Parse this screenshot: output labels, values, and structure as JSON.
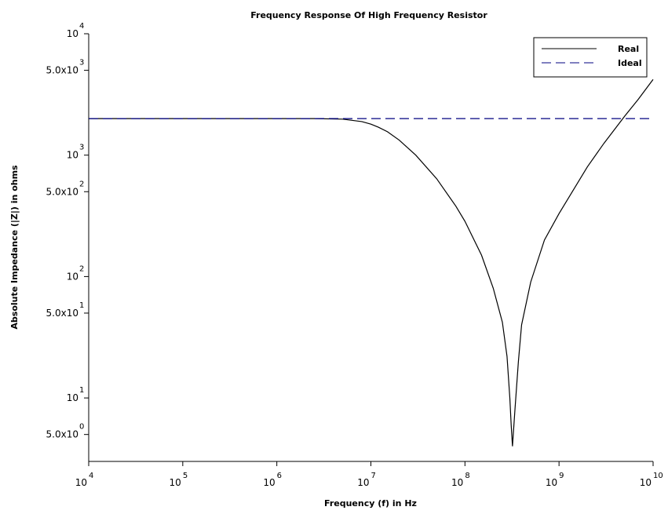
{
  "chart_data": {
    "type": "line",
    "title": "Frequency Response Of High Frequency Resistor",
    "xlabel": "Frequency  (f) in Hz",
    "ylabel": "Absolute Impedance (|Z|) in ohms",
    "x_scale": "log",
    "y_scale": "log",
    "xlim": [
      10000,
      10000000000
    ],
    "ylim": [
      3,
      10000
    ],
    "grid": false,
    "legend_position": "top-right",
    "x_ticks": [
      {
        "value": 10000,
        "base": "10",
        "exp": "4"
      },
      {
        "value": 100000,
        "base": "10",
        "exp": "5"
      },
      {
        "value": 1000000,
        "base": "10",
        "exp": "6"
      },
      {
        "value": 10000000,
        "base": "10",
        "exp": "7"
      },
      {
        "value": 100000000,
        "base": "10",
        "exp": "8"
      },
      {
        "value": 1000000000,
        "base": "10",
        "exp": "9"
      },
      {
        "value": 10000000000,
        "base": "10",
        "exp": "10"
      }
    ],
    "y_ticks": [
      {
        "value": 10000,
        "base": "10",
        "exp": "4"
      },
      {
        "value": 5000,
        "base": "5.0x10",
        "exp": "3"
      },
      {
        "value": 1000,
        "base": "10",
        "exp": "3"
      },
      {
        "value": 500,
        "base": "5.0x10",
        "exp": "2"
      },
      {
        "value": 100,
        "base": "10",
        "exp": "2"
      },
      {
        "value": 50,
        "base": "5.0x10",
        "exp": "1"
      },
      {
        "value": 10,
        "base": "10",
        "exp": "1"
      },
      {
        "value": 5,
        "base": "5.0x10",
        "exp": "0"
      }
    ],
    "series": [
      {
        "name": "Real",
        "color": "#000000",
        "dash": "solid",
        "x": [
          10000,
          1000000,
          2500000,
          5000000,
          8000000,
          10000000,
          12000000,
          15000000,
          20000000,
          30000000,
          50000000,
          80000000,
          100000000,
          150000000,
          200000000,
          250000000,
          280000000,
          300000000,
          310000000,
          320000000,
          340000000,
          370000000,
          400000000,
          500000000,
          700000000,
          1000000000,
          2000000000,
          3000000000,
          5000000000,
          7000000000,
          10000000000
        ],
        "y": [
          2000,
          2000,
          2000,
          1980,
          1890,
          1800,
          1700,
          1560,
          1330,
          1000,
          640,
          380,
          285,
          150,
          80,
          42,
          22,
          10,
          6,
          4,
          8,
          20,
          40,
          90,
          200,
          330,
          800,
          1250,
          2100,
          2900,
          4200
        ]
      },
      {
        "name": "Ideal",
        "color": "#000080",
        "dash": "dashed",
        "x": [
          10000,
          10000000000
        ],
        "y": [
          2000,
          2000
        ]
      }
    ]
  }
}
